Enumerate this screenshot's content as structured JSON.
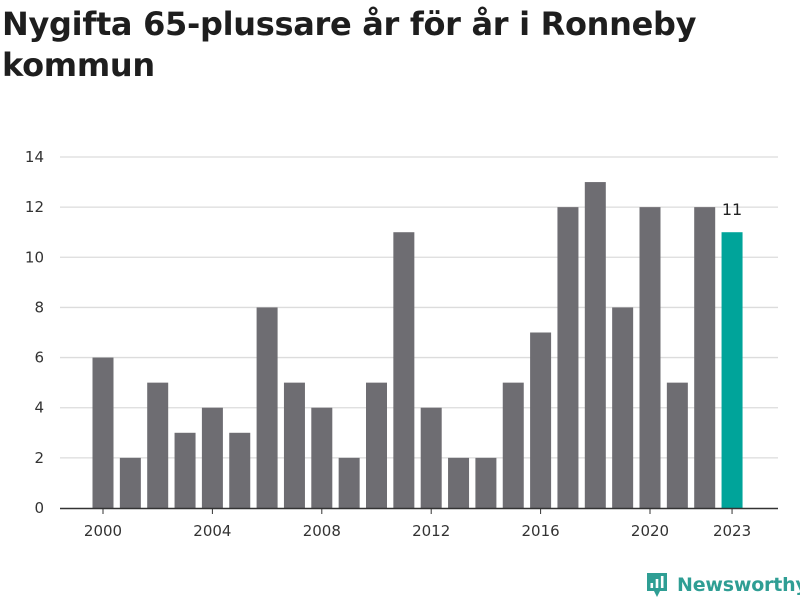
{
  "chart_data": {
    "type": "bar",
    "title": "Nygifta 65-plussare år för år i Ronneby kommun",
    "categories": [
      "2000",
      "2001",
      "2002",
      "2003",
      "2004",
      "2005",
      "2006",
      "2007",
      "2008",
      "2009",
      "2010",
      "2011",
      "2012",
      "2013",
      "2014",
      "2015",
      "2016",
      "2017",
      "2018",
      "2019",
      "2020",
      "2021",
      "2022",
      "2023"
    ],
    "values": [
      6,
      2,
      5,
      3,
      4,
      3,
      8,
      5,
      4,
      2,
      5,
      11,
      4,
      2,
      2,
      5,
      7,
      12,
      13,
      8,
      12,
      5,
      12,
      11
    ],
    "xticks": [
      "2000",
      "2004",
      "2008",
      "2012",
      "2016",
      "2020",
      "2023"
    ],
    "yticks": [
      0,
      2,
      4,
      6,
      8,
      10,
      12,
      14
    ],
    "ylim": [
      0,
      14
    ],
    "grid": true,
    "highlight_category": "2023",
    "highlight_label": "11",
    "colors": {
      "bar": "#6e6d72",
      "highlight": "#00a49a",
      "grid": "#dcdcdc",
      "axis": "#333333"
    }
  },
  "brand": {
    "name": "Newsworthy",
    "icon": "newsworthy-logo-icon",
    "color": "#2f9e94"
  }
}
